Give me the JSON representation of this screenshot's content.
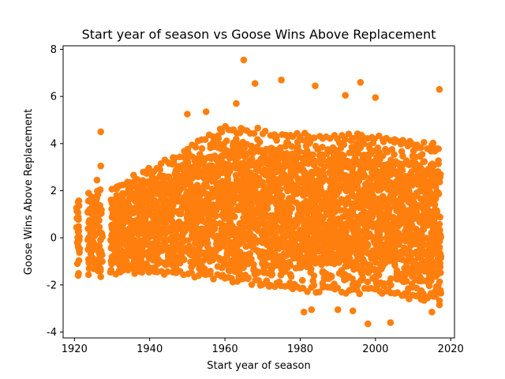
{
  "chart_data": {
    "type": "scatter",
    "title": "Start year of season vs Goose Wins Above Replacement",
    "xlabel": "Start year of season",
    "ylabel": "Goose Wins Above Replacement",
    "xlim": [
      1917,
      2021
    ],
    "ylim": [
      -4.25,
      8.15
    ],
    "xticks": [
      1920,
      1940,
      1960,
      1980,
      2000,
      2020
    ],
    "yticks": [
      -4,
      -2,
      0,
      2,
      4,
      6,
      8
    ],
    "grid": false,
    "legend": "none",
    "point_color": "#ff7f0e",
    "x_range": [
      1921,
      2017
    ],
    "dense_band": {
      "lower": [
        [
          1921,
          -1.6
        ],
        [
          1930,
          -1.6
        ],
        [
          1940,
          -1.5
        ],
        [
          1960,
          -1.9
        ],
        [
          1980,
          -2.3
        ],
        [
          2000,
          -2.4
        ],
        [
          2017,
          -2.8
        ]
      ],
      "upper": [
        [
          1921,
          1.8
        ],
        [
          1930,
          2.2
        ],
        [
          1940,
          3.0
        ],
        [
          1960,
          4.8
        ],
        [
          1980,
          4.5
        ],
        [
          2000,
          4.4
        ],
        [
          2017,
          4.0
        ]
      ]
    },
    "notable_points": [
      {
        "x": 1927,
        "y": 4.5
      },
      {
        "x": 1927,
        "y": 3.05
      },
      {
        "x": 1926,
        "y": 2.45
      },
      {
        "x": 1965,
        "y": 7.55
      },
      {
        "x": 1968,
        "y": 6.55
      },
      {
        "x": 1975,
        "y": 6.7
      },
      {
        "x": 1984,
        "y": 6.45
      },
      {
        "x": 1996,
        "y": 6.6
      },
      {
        "x": 2017,
        "y": 6.3
      },
      {
        "x": 1950,
        "y": 5.25
      },
      {
        "x": 1955,
        "y": 5.35
      },
      {
        "x": 1963,
        "y": 5.7
      },
      {
        "x": 1992,
        "y": 6.05
      },
      {
        "x": 2000,
        "y": 5.95
      },
      {
        "x": 1981,
        "y": -3.15
      },
      {
        "x": 1983,
        "y": -3.05
      },
      {
        "x": 1990,
        "y": -3.05
      },
      {
        "x": 1994,
        "y": -3.1
      },
      {
        "x": 1998,
        "y": -3.65
      },
      {
        "x": 2004,
        "y": -3.6
      },
      {
        "x": 2015,
        "y": -3.15
      },
      {
        "x": 1921,
        "y": -1.6
      },
      {
        "x": 1927,
        "y": -1.65
      },
      {
        "x": 2017,
        "y": -2.85
      }
    ]
  }
}
